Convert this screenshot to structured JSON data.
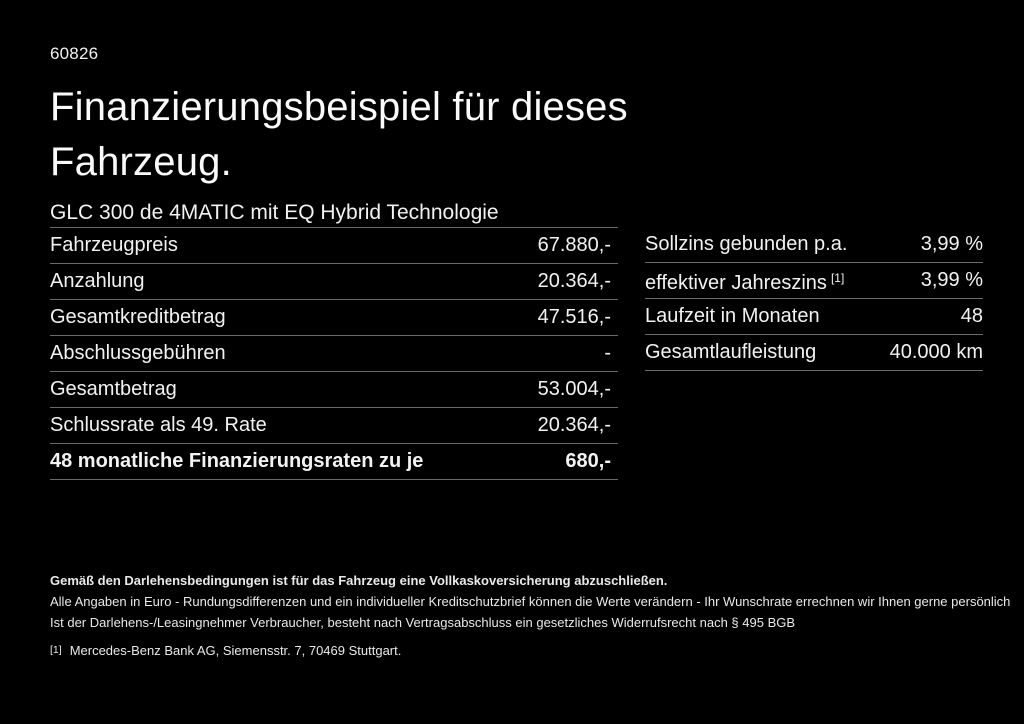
{
  "header": {
    "doc_number": "60826",
    "title": "Finanzierungsbeispiel für dieses Fahrzeug.",
    "subtitle": "GLC 300 de 4MATIC mit EQ Hybrid Technologie"
  },
  "finance_table": {
    "rows": [
      {
        "label": "Fahrzeugpreis",
        "value": "67.880,-"
      },
      {
        "label": "Anzahlung",
        "value": "20.364,-"
      },
      {
        "label": "Gesamtkreditbetrag",
        "value": "47.516,-"
      },
      {
        "label": "Abschlussgebühren",
        "value": "-"
      },
      {
        "label": "Gesamtbetrag",
        "value": "53.004,-"
      },
      {
        "label": "Schlussrate als 49. Rate",
        "value": "20.364,-"
      },
      {
        "label": "48 monatliche Finanzierungsraten zu je",
        "value": "680,-"
      }
    ]
  },
  "conditions_table": {
    "rows": [
      {
        "label": "Sollzins gebunden p.a.",
        "value": "3,99 %"
      },
      {
        "label": "effektiver Jahreszins",
        "sup": "[1]",
        "value": "3,99 %"
      },
      {
        "label": "Laufzeit in Monaten",
        "value": "48"
      },
      {
        "label": "Gesamtlaufleistung",
        "value": "40.000 km"
      }
    ]
  },
  "footer": {
    "bold_note": "Gemäß den Darlehensbedingungen ist für das Fahrzeug eine Vollkaskoversicherung abzuschließen.",
    "note_line2": "Alle Angaben in Euro - Rundungsdifferenzen und ein individueller Kreditschutzbrief können die Werte verändern - Ihr Wunschrate errechnen wir Ihnen gerne persönlich",
    "note_line3": "Ist der Darlehens-/Leasingnehmer Verbraucher, besteht nach Vertragsabschluss ein gesetzliches Widerrufsrecht nach § 495 BGB",
    "footnote_marker": "[1]",
    "footnote_text": "Mercedes-Benz Bank AG, Siemensstr. 7, 70469 Stuttgart."
  },
  "colors": {
    "background": "#000000",
    "text": "#f2f2f2",
    "divider": "#696969"
  }
}
